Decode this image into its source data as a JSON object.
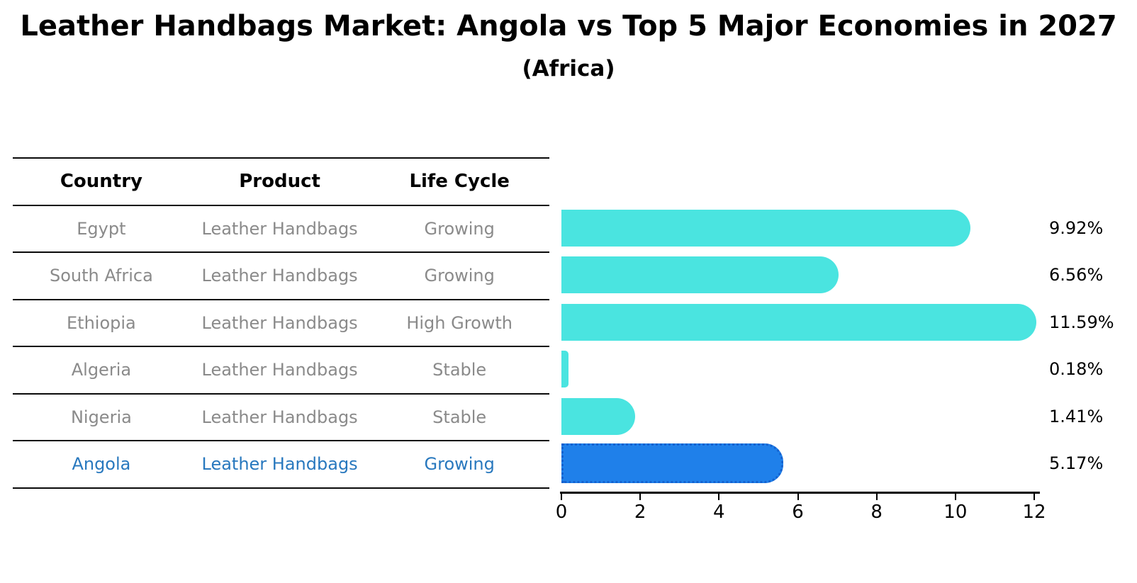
{
  "header": {
    "title": "Leather Handbags Market: Angola vs Top 5 Major Economies in 2027",
    "subtitle": "(Africa)"
  },
  "table": {
    "headers": [
      "Country",
      "Product",
      "Life Cycle"
    ],
    "rows": [
      {
        "country": "Egypt",
        "product": "Leather Handbags",
        "life_cycle": "Growing",
        "highlight": false
      },
      {
        "country": "South Africa",
        "product": "Leather Handbags",
        "life_cycle": "Growing",
        "highlight": false
      },
      {
        "country": "Ethiopia",
        "product": "Leather Handbags",
        "life_cycle": "High Growth",
        "highlight": false
      },
      {
        "country": "Algeria",
        "product": "Leather Handbags",
        "life_cycle": "Stable",
        "highlight": false
      },
      {
        "country": "Nigeria",
        "product": "Leather Handbags",
        "life_cycle": "Stable",
        "highlight": false
      },
      {
        "country": "Angola",
        "product": "Leather Handbags",
        "life_cycle": "Growing",
        "highlight": true
      }
    ]
  },
  "chart_data": {
    "type": "bar",
    "orientation": "horizontal",
    "title": "Leather Handbags Market: Angola vs Top 5 Major Economies in 2027",
    "subtitle": "(Africa)",
    "categories": [
      "Egypt",
      "South Africa",
      "Ethiopia",
      "Algeria",
      "Nigeria",
      "Angola"
    ],
    "values": [
      9.92,
      6.56,
      11.59,
      0.18,
      1.41,
      5.17
    ],
    "value_labels": [
      "9.92%",
      "6.56%",
      "11.59%",
      "0.18%",
      "1.41%",
      "5.17%"
    ],
    "x_ticks": [
      "0",
      "2",
      "4",
      "6",
      "8",
      "10",
      "12"
    ],
    "x_tick_values": [
      0,
      2,
      4,
      6,
      8,
      10,
      12
    ],
    "xlim": [
      0,
      12
    ],
    "grid": false,
    "legend": false,
    "highlight_category": "Angola",
    "colors": {
      "bar_fill": "#4ae4e0",
      "highlight_bar_fill": "#1f80ea",
      "highlight_bar_edge": "#1461cf",
      "highlight_text": "#2878be",
      "row_text": "#8a8a8a",
      "text": "#000000"
    }
  }
}
